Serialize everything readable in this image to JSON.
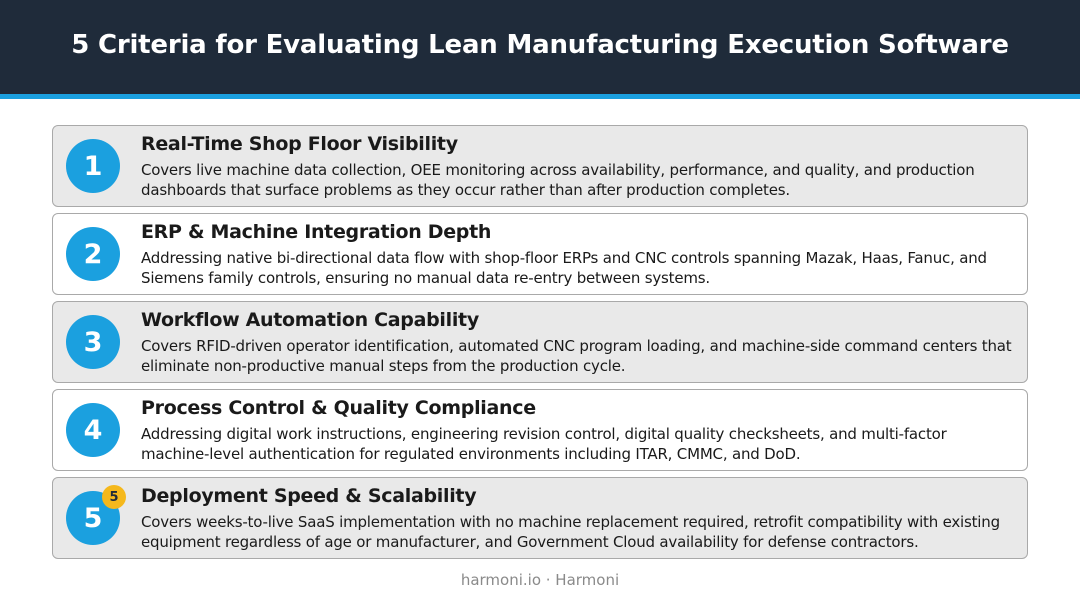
{
  "header": {
    "title": "5 Criteria for Evaluating Lean Manufacturing Execution Software"
  },
  "criteria": [
    {
      "number": "1",
      "title": "Real-Time Shop Floor Visibility",
      "description": "Covers live machine data collection, OEE monitoring across availability, performance, and quality, and production dashboards that surface problems as they occur rather than after production completes."
    },
    {
      "number": "2",
      "title": "ERP & Machine Integration Depth",
      "description": "Addressing native bi-directional data flow with shop-floor ERPs and CNC controls spanning Mazak, Haas, Fanuc, and Siemens family controls, ensuring no manual data re-entry between systems."
    },
    {
      "number": "3",
      "title": "Workflow Automation Capability",
      "description": "Covers RFID-driven operator identification, automated CNC program loading, and machine-side command centers that eliminate non-productive manual steps from the production cycle."
    },
    {
      "number": "4",
      "title": "Process Control & Quality Compliance",
      "description": "Addressing digital work instructions, engineering revision control, digital quality checksheets, and multi-factor machine-level authentication for regulated environments including ITAR, CMMC, and DoD."
    },
    {
      "number": "5",
      "badge": "5",
      "title": "Deployment Speed & Scalability",
      "description": "Covers weeks-to-live SaaS implementation with no machine replacement required, retrofit compatibility with existing equipment regardless of age or manufacturer, and Government Cloud availability for defense contractors."
    }
  ],
  "footer": {
    "text": "harmoni.io · Harmoni"
  },
  "colors": {
    "header_bg": "#1f2b3a",
    "accent_blue": "#1ba0df",
    "badge_yellow": "#f5b81c",
    "card_shaded": "#e9e9e9"
  }
}
